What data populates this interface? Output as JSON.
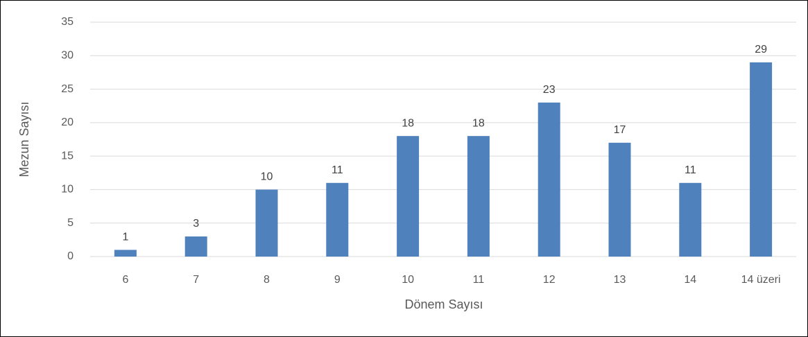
{
  "chart_data": {
    "type": "bar",
    "categories": [
      "6",
      "7",
      "8",
      "9",
      "10",
      "11",
      "12",
      "13",
      "14",
      "14 üzeri"
    ],
    "values": [
      1,
      3,
      10,
      11,
      18,
      18,
      23,
      17,
      11,
      29
    ],
    "color": "#4f81bd",
    "xlabel": "Dönem Sayısı",
    "ylabel": "Mezun Sayısı",
    "ylim": [
      0,
      35
    ],
    "yticks": [
      0,
      5,
      10,
      15,
      20,
      25,
      30,
      35
    ],
    "grid": true
  }
}
